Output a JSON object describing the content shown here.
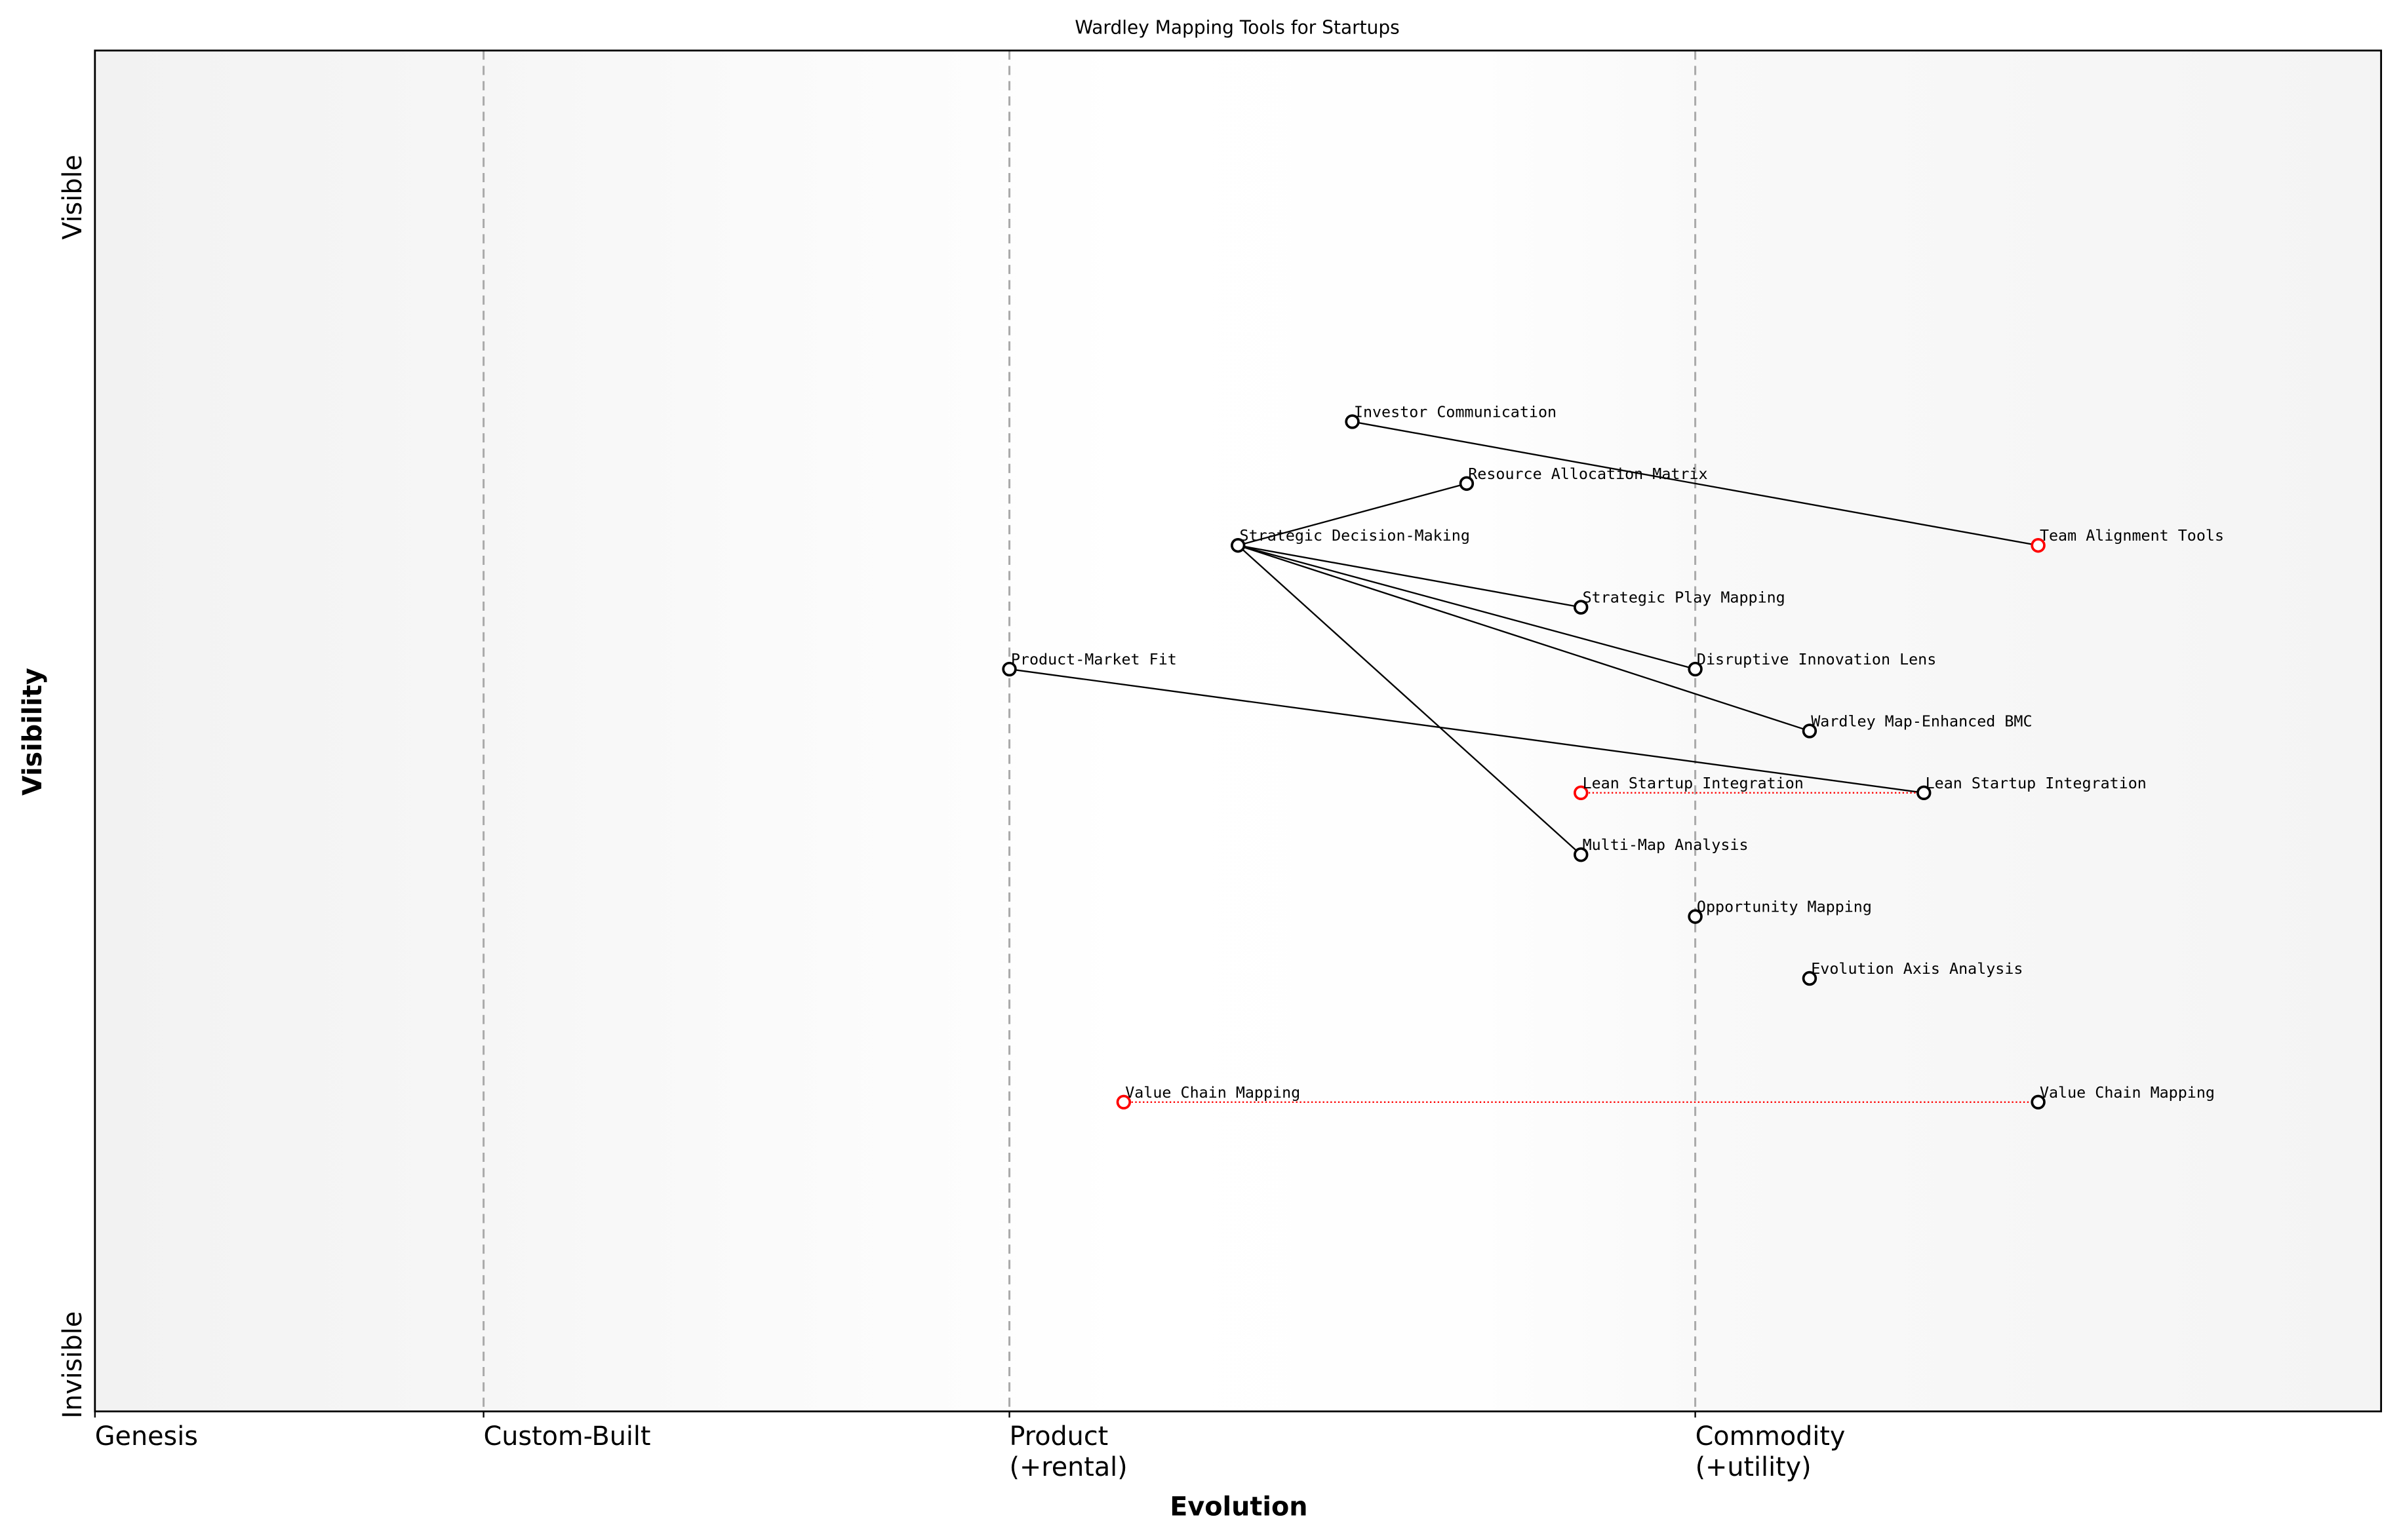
{
  "chart_data": {
    "type": "scatter",
    "title": "Wardley Mapping Tools for Startups",
    "xlabel": "Evolution",
    "ylabel": "Visibility",
    "xlim": [
      0,
      1
    ],
    "ylim": [
      0,
      1.1
    ],
    "x_ticks": [
      {
        "value": 0,
        "label": "Genesis"
      },
      {
        "value": 0.17,
        "label": "Custom-Built"
      },
      {
        "value": 0.4,
        "label": "Product\n(+rental)"
      },
      {
        "value": 0.7,
        "label": "Commodity\n(+utility)"
      }
    ],
    "y_ticks": [
      {
        "value": 1.0,
        "label": "Visible"
      },
      {
        "value": 0.05,
        "label": "Invisible"
      }
    ],
    "stage_dividers": [
      0.17,
      0.4,
      0.7
    ],
    "colors": {
      "node": "#000000",
      "moved_node": "#ff0000",
      "link": "#000000",
      "evolution_link": "#ff0000",
      "divider": "#aaaaaa"
    },
    "nodes": [
      {
        "id": "inv",
        "label": "Investor Communication",
        "x": 0.55,
        "y": 0.8,
        "color": "#000000"
      },
      {
        "id": "res",
        "label": "Resource Allocation Matrix",
        "x": 0.6,
        "y": 0.75,
        "color": "#000000"
      },
      {
        "id": "sdm",
        "label": "Strategic Decision-Making",
        "x": 0.5,
        "y": 0.7,
        "color": "#000000"
      },
      {
        "id": "team",
        "label": "Team Alignment Tools",
        "x": 0.85,
        "y": 0.7,
        "color": "#ff0000"
      },
      {
        "id": "spm",
        "label": "Strategic Play Mapping",
        "x": 0.65,
        "y": 0.65,
        "color": "#000000"
      },
      {
        "id": "pmf",
        "label": "Product-Market Fit",
        "x": 0.4,
        "y": 0.6,
        "color": "#000000"
      },
      {
        "id": "dil",
        "label": "Disruptive Innovation Lens",
        "x": 0.7,
        "y": 0.6,
        "color": "#000000"
      },
      {
        "id": "bmc",
        "label": "Wardley Map-Enhanced BMC",
        "x": 0.75,
        "y": 0.55,
        "color": "#000000"
      },
      {
        "id": "lean_old",
        "label": "Lean Startup Integration",
        "x": 0.65,
        "y": 0.5,
        "color": "#ff0000"
      },
      {
        "id": "lean",
        "label": "Lean Startup Integration",
        "x": 0.8,
        "y": 0.5,
        "color": "#000000"
      },
      {
        "id": "mma",
        "label": "Multi-Map Analysis",
        "x": 0.65,
        "y": 0.45,
        "color": "#000000"
      },
      {
        "id": "opp",
        "label": "Opportunity Mapping",
        "x": 0.7,
        "y": 0.4,
        "color": "#000000"
      },
      {
        "id": "eaa",
        "label": "Evolution Axis Analysis",
        "x": 0.75,
        "y": 0.35,
        "color": "#000000"
      },
      {
        "id": "vcm_old",
        "label": "Value Chain Mapping",
        "x": 0.45,
        "y": 0.25,
        "color": "#ff0000"
      },
      {
        "id": "vcm",
        "label": "Value Chain Mapping",
        "x": 0.85,
        "y": 0.25,
        "color": "#000000"
      }
    ],
    "links": [
      {
        "from": "inv",
        "to": "team",
        "style": "solid"
      },
      {
        "from": "sdm",
        "to": "res",
        "style": "solid"
      },
      {
        "from": "sdm",
        "to": "spm",
        "style": "solid"
      },
      {
        "from": "sdm",
        "to": "dil",
        "style": "solid"
      },
      {
        "from": "sdm",
        "to": "bmc",
        "style": "solid"
      },
      {
        "from": "sdm",
        "to": "mma",
        "style": "solid"
      },
      {
        "from": "pmf",
        "to": "lean",
        "style": "solid"
      },
      {
        "from": "lean_old",
        "to": "lean",
        "style": "dotted"
      },
      {
        "from": "vcm_old",
        "to": "vcm",
        "style": "dotted"
      }
    ]
  }
}
